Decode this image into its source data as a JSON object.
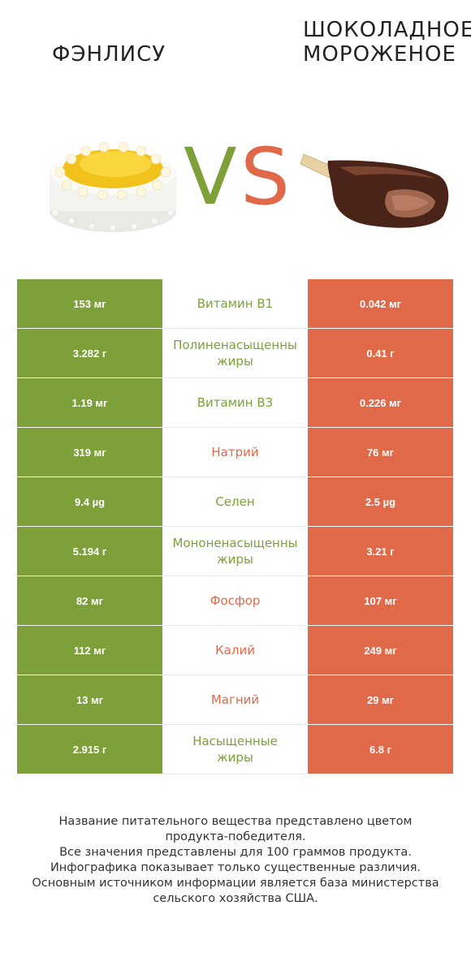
{
  "header": {
    "left_title": "ФЭНЛИСУ",
    "right_title_line1": "ШОКОЛАДНОЕ",
    "right_title_line2": "МОРОЖЕНОЕ",
    "vs_v": "V",
    "vs_s": "S"
  },
  "colors": {
    "left": "#7da03a",
    "right": "#e0694a"
  },
  "rows": [
    {
      "left": "153 мг",
      "name": "Витамин B1",
      "name2": "",
      "right": "0.042 мг",
      "winner": "left"
    },
    {
      "left": "3.282 г",
      "name": "Полиненасыщенны",
      "name2": "жиры",
      "right": "0.41 г",
      "winner": "left"
    },
    {
      "left": "1.19 мг",
      "name": "Витамин B3",
      "name2": "",
      "right": "0.226 мг",
      "winner": "left"
    },
    {
      "left": "319 мг",
      "name": "Натрий",
      "name2": "",
      "right": "76 мг",
      "winner": "right"
    },
    {
      "left": "9.4 µg",
      "name": "Селен",
      "name2": "",
      "right": "2.5 µg",
      "winner": "left"
    },
    {
      "left": "5.194 г",
      "name": "Мононенасыщенны",
      "name2": "жиры",
      "right": "3.21 г",
      "winner": "left"
    },
    {
      "left": "82 мг",
      "name": "Фосфор",
      "name2": "",
      "right": "107 мг",
      "winner": "right"
    },
    {
      "left": "112 мг",
      "name": "Калий",
      "name2": "",
      "right": "249 мг",
      "winner": "right"
    },
    {
      "left": "13 мг",
      "name": "Магний",
      "name2": "",
      "right": "29 мг",
      "winner": "right"
    },
    {
      "left": "2.915 г",
      "name": "Насыщенные",
      "name2": "жиры",
      "right": "6.8 г",
      "winner": "left"
    }
  ],
  "footer": {
    "line1": "Название питательного вещества представлено цветом",
    "line2": "продукта-победителя.",
    "line3": "Все значения представлены для 100 граммов продукта.",
    "line4": "Инфографика показывает только существенные различия.",
    "line5": "Основным источником информации является база министерства",
    "line6": "сельского хозяйства США."
  }
}
